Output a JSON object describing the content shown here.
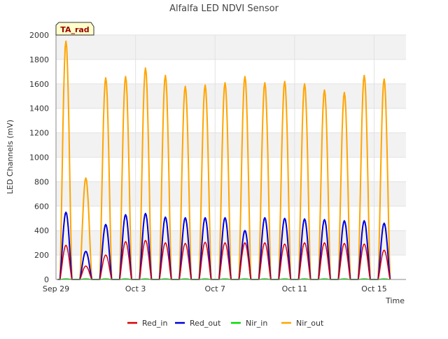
{
  "chart_data": {
    "type": "line",
    "title": "Alfalfa LED NDVI Sensor",
    "xlabel": "Time",
    "ylabel": "LED Channels (mV)",
    "xlim": [
      0,
      17.6
    ],
    "ylim": [
      0,
      2000
    ],
    "x_tick_labels": [
      {
        "x": 0,
        "label": "Sep 29"
      },
      {
        "x": 4,
        "label": "Oct 3"
      },
      {
        "x": 8,
        "label": "Oct 7"
      },
      {
        "x": 12,
        "label": "Oct 11"
      },
      {
        "x": 16,
        "label": "Oct 15"
      }
    ],
    "y_ticks": [
      0,
      200,
      400,
      600,
      800,
      1000,
      1200,
      1400,
      1600,
      1800,
      2000
    ],
    "annotation": "TA_rad",
    "legend": {
      "placement": "bottom-center",
      "entries": [
        "Red_in",
        "Red_out",
        "Nir_in",
        "Nir_out"
      ]
    },
    "colors": {
      "Red_in": "#dd0000",
      "Red_out": "#0000dd",
      "Nir_in": "#00dd00",
      "Nir_out": "#ffa500"
    },
    "series": [
      {
        "name": "Red_in",
        "days": [
          0,
          1,
          2,
          3,
          4,
          5,
          6,
          7,
          8,
          9,
          10,
          11,
          12,
          13,
          14,
          15,
          16
        ],
        "peaks": [
          280,
          110,
          200,
          310,
          320,
          300,
          295,
          305,
          300,
          300,
          300,
          290,
          300,
          300,
          295,
          290,
          240
        ]
      },
      {
        "name": "Red_out",
        "days": [
          0,
          1,
          2,
          3,
          4,
          5,
          6,
          7,
          8,
          9,
          10,
          11,
          12,
          13,
          14,
          15,
          16
        ],
        "peaks": [
          550,
          230,
          450,
          530,
          540,
          510,
          505,
          505,
          505,
          400,
          505,
          500,
          495,
          490,
          480,
          480,
          460
        ]
      },
      {
        "name": "Nir_in",
        "days": [
          0,
          1,
          2,
          3,
          4,
          5,
          6,
          7,
          8,
          9,
          10,
          11,
          12,
          13,
          14,
          15,
          16
        ],
        "peaks": [
          5,
          5,
          5,
          5,
          5,
          5,
          5,
          5,
          5,
          5,
          5,
          5,
          5,
          5,
          5,
          5,
          5
        ]
      },
      {
        "name": "Nir_out",
        "days": [
          0,
          1,
          2,
          3,
          4,
          5,
          6,
          7,
          8,
          9,
          10,
          11,
          12,
          13,
          14,
          15,
          16
        ],
        "peaks": [
          1950,
          830,
          1650,
          1660,
          1730,
          1670,
          1580,
          1590,
          1610,
          1660,
          1610,
          1620,
          1600,
          1550,
          1530,
          1670,
          1640
        ]
      }
    ]
  }
}
